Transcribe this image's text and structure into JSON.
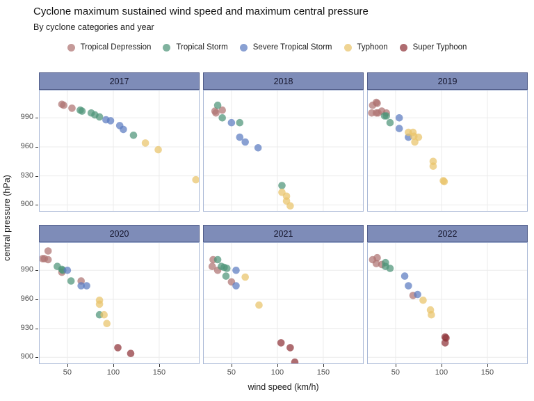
{
  "title": "Cyclone maximum sustained wind speed and maximum central pressure",
  "subtitle": "By cyclone categories and year",
  "legend": {
    "items": [
      {
        "label": "Tropical Depression",
        "color": "#AE7372"
      },
      {
        "label": "Tropical Storm",
        "color": "#4E9478"
      },
      {
        "label": "Severe Tropical Storm",
        "color": "#5C7BC0"
      },
      {
        "label": "Typhoon",
        "color": "#E9C46A"
      },
      {
        "label": "Super Typhoon",
        "color": "#8F3339"
      }
    ]
  },
  "axes": {
    "x_label": "wind speed (km/h)",
    "y_label": "central pressure (hPa)",
    "x_ticks": [
      50,
      100,
      150
    ],
    "y_ticks": [
      900,
      930,
      960,
      990
    ],
    "x_domain": [
      19,
      194
    ],
    "y_domain": [
      893,
      1019
    ],
    "grid": "major-on",
    "panel_border_color": "#A9B8D6",
    "grid_color": "#EBEBEB",
    "strip_fill": "#7E8CB8"
  },
  "chart_data": {
    "type": "scatter",
    "title": "Cyclone maximum sustained wind speed and maximum central pressure",
    "subtitle": "By cyclone categories and year",
    "xlabel": "wind speed (km/h)",
    "ylabel": "central pressure (hPa)",
    "xlim": [
      19,
      194
    ],
    "ylim": [
      893,
      1019
    ],
    "legend_position": "top",
    "facets": [
      {
        "label": "2017",
        "series": {
          "Tropical Depression": [
            [
              44,
              1004
            ],
            [
              46,
              1003
            ],
            [
              55,
              1000
            ]
          ],
          "Tropical Storm": [
            [
              64,
              998
            ],
            [
              66,
              997
            ],
            [
              76,
              995
            ],
            [
              80,
              993
            ],
            [
              85,
              991
            ],
            [
              122,
              972
            ]
          ],
          "Severe Tropical Storm": [
            [
              92,
              988
            ],
            [
              97,
              987
            ],
            [
              107,
              982
            ],
            [
              111,
              978
            ]
          ],
          "Typhoon": [
            [
              135,
              964
            ],
            [
              149,
              957
            ],
            [
              190,
              926
            ]
          ],
          "Super Typhoon": []
        }
      },
      {
        "label": "2018",
        "series": {
          "Tropical Depression": [
            [
              40,
              998
            ],
            [
              32,
              997
            ],
            [
              33,
              995
            ]
          ],
          "Tropical Storm": [
            [
              35,
              1003
            ],
            [
              40,
              990
            ],
            [
              59,
              985
            ],
            [
              105,
              920
            ]
          ],
          "Severe Tropical Storm": [
            [
              50,
              985
            ],
            [
              59,
              970
            ],
            [
              65,
              965
            ],
            [
              79,
              959
            ]
          ],
          "Typhoon": [
            [
              105,
              913
            ],
            [
              110,
              909
            ],
            [
              110,
              904
            ],
            [
              114,
              899
            ]
          ],
          "Super Typhoon": []
        }
      },
      {
        "label": "2019",
        "series": {
          "Tropical Depression": [
            [
              29,
              1006
            ],
            [
              30,
              1005
            ],
            [
              25,
              1003
            ],
            [
              24,
              995
            ],
            [
              29,
              995
            ],
            [
              31,
              995
            ],
            [
              35,
              997
            ],
            [
              40,
              995
            ]
          ],
          "Tropical Storm": [
            [
              38,
              992
            ],
            [
              40,
              992
            ],
            [
              44,
              985
            ]
          ],
          "Severe Tropical Storm": [
            [
              54,
              990
            ],
            [
              54,
              979
            ],
            [
              64,
              970
            ]
          ],
          "Typhoon": [
            [
              64,
              975
            ],
            [
              69,
              975
            ],
            [
              70,
              971
            ],
            [
              75,
              970
            ],
            [
              71,
              965
            ],
            [
              91,
              945
            ],
            [
              91,
              940
            ],
            [
              102,
              925
            ],
            [
              103,
              924
            ]
          ],
          "Super Typhoon": []
        }
      },
      {
        "label": "2020",
        "series": {
          "Tropical Depression": [
            [
              29,
              1010
            ],
            [
              23,
              1002
            ],
            [
              25,
              1002
            ],
            [
              29,
              1001
            ],
            [
              44,
              988
            ],
            [
              65,
              979
            ]
          ],
          "Tropical Storm": [
            [
              39,
              994
            ],
            [
              44,
              991
            ],
            [
              45,
              990
            ],
            [
              54,
              979
            ],
            [
              85,
              944
            ]
          ],
          "Severe Tropical Storm": [
            [
              50,
              990
            ],
            [
              65,
              974
            ],
            [
              71,
              974
            ]
          ],
          "Typhoon": [
            [
              85,
              959
            ],
            [
              85,
              955
            ],
            [
              90,
              944
            ],
            [
              93,
              935
            ]
          ],
          "Super Typhoon": [
            [
              105,
              910
            ],
            [
              119,
              904
            ]
          ]
        }
      },
      {
        "label": "2021",
        "series": {
          "Tropical Depression": [
            [
              30,
              1001
            ],
            [
              29,
              994
            ],
            [
              35,
              990
            ],
            [
              50,
              978
            ]
          ],
          "Tropical Storm": [
            [
              35,
              1001
            ],
            [
              39,
              994
            ],
            [
              42,
              993
            ],
            [
              45,
              992
            ],
            [
              44,
              984
            ]
          ],
          "Severe Tropical Storm": [
            [
              55,
              990
            ],
            [
              55,
              974
            ]
          ],
          "Typhoon": [
            [
              65,
              983
            ],
            [
              80,
              954
            ]
          ],
          "Super Typhoon": [
            [
              104,
              915
            ],
            [
              114,
              910
            ],
            [
              119,
              895
            ]
          ]
        }
      },
      {
        "label": "2022",
        "series": {
          "Tropical Depression": [
            [
              25,
              1001
            ],
            [
              30,
              1003
            ],
            [
              29,
              997
            ],
            [
              35,
              996
            ],
            [
              69,
              964
            ]
          ],
          "Tropical Storm": [
            [
              39,
              998
            ],
            [
              39,
              994
            ],
            [
              44,
              992
            ]
          ],
          "Severe Tropical Storm": [
            [
              60,
              984
            ],
            [
              64,
              974
            ],
            [
              74,
              965
            ]
          ],
          "Typhoon": [
            [
              80,
              959
            ],
            [
              88,
              949
            ],
            [
              89,
              944
            ]
          ],
          "Super Typhoon": [
            [
              104,
              921
            ],
            [
              105,
              920
            ],
            [
              104,
              915
            ]
          ]
        }
      }
    ]
  }
}
